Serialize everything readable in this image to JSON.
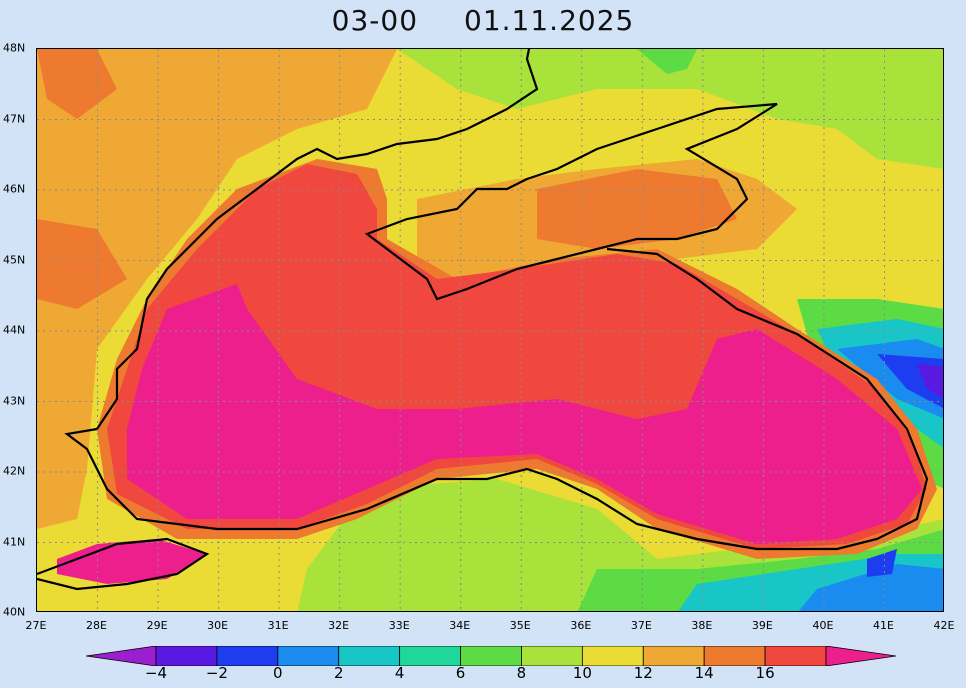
{
  "header": {
    "time": "03-00",
    "date": "01.11.2025"
  },
  "map": {
    "x_ticks": [
      "27E",
      "28E",
      "29E",
      "30E",
      "31E",
      "32E",
      "33E",
      "34E",
      "35E",
      "36E",
      "37E",
      "38E",
      "39E",
      "40E",
      "41E",
      "42E"
    ],
    "y_ticks": [
      "48N",
      "47N",
      "46N",
      "45N",
      "44N",
      "43N",
      "42N",
      "41N",
      "40N"
    ]
  },
  "colorbar": {
    "labels": [
      "−4",
      "−2",
      "0",
      "2",
      "4",
      "6",
      "8",
      "10",
      "12",
      "14",
      "16"
    ],
    "colors": [
      "#9b1fd1",
      "#5a19e0",
      "#1f3df0",
      "#1a8cf0",
      "#18c6c8",
      "#1fd79a",
      "#5cdb45",
      "#a8e23a",
      "#eadb35",
      "#f0a835",
      "#ee7a30",
      "#f0473e",
      "#ec1f8c"
    ]
  },
  "palette": {
    "c8": "#a8e23a",
    "c10": "#eadb35",
    "c12": "#f0a835",
    "c14": "#ee7a30",
    "c16": "#f0473e",
    "c18": "#ec1f8c",
    "c6": "#5cdb45",
    "c4": "#1fd79a",
    "c2": "#1a8cf0",
    "c0": "#1f3df0",
    "cm2": "#5a19e0"
  }
}
